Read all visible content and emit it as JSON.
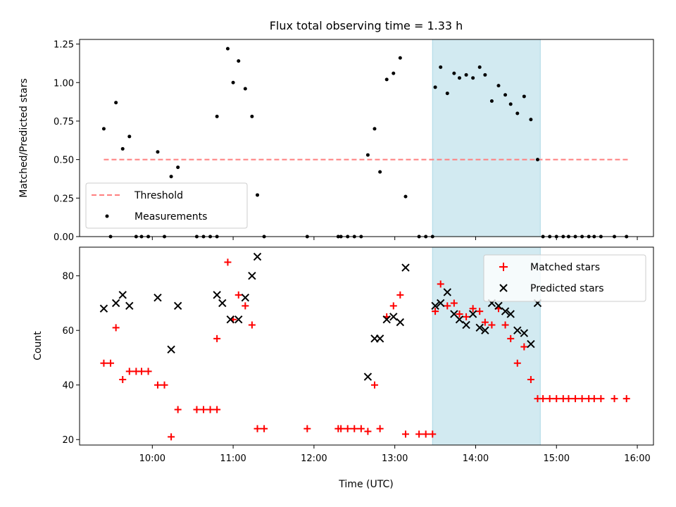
{
  "colors": {
    "highlight": "#add8e6",
    "threshold": "#ff7f7f",
    "measurement": "#000000",
    "matched": "#ff0000",
    "predicted": "#000000"
  },
  "chart_data": [
    {
      "type": "scatter",
      "title": "Flux total observing time = 1.33 h",
      "xlabel": "",
      "ylabel": "Matched/Predicted stars",
      "xlim": [
        "09:06",
        "16:12"
      ],
      "ylim": [
        0,
        1.28
      ],
      "yticks": [
        "0.00",
        "0.25",
        "0.50",
        "0.75",
        "1.00",
        "1.25"
      ],
      "highlight_span": [
        "13:28",
        "14:48"
      ],
      "legend_position": "lower-left",
      "series": [
        {
          "name": "Threshold",
          "style": "dashed-line",
          "x": [
            "09:24",
            "15:54"
          ],
          "y": [
            0.5,
            0.5
          ]
        },
        {
          "name": "Measurements",
          "style": "dots",
          "points": [
            [
              "09:24",
              0.7
            ],
            [
              "09:29",
              0.0
            ],
            [
              "09:33",
              0.87
            ],
            [
              "09:38",
              0.57
            ],
            [
              "09:43",
              0.65
            ],
            [
              "09:48",
              0.0
            ],
            [
              "09:52",
              0.0
            ],
            [
              "09:57",
              0.0
            ],
            [
              "10:04",
              0.55
            ],
            [
              "10:09",
              0.0
            ],
            [
              "10:14",
              0.39
            ],
            [
              "10:19",
              0.45
            ],
            [
              "10:33",
              0.0
            ],
            [
              "10:38",
              0.0
            ],
            [
              "10:43",
              0.0
            ],
            [
              "10:48",
              0.0
            ],
            [
              "10:48",
              0.78
            ],
            [
              "10:56",
              1.22
            ],
            [
              "11:00",
              1.0
            ],
            [
              "11:04",
              1.14
            ],
            [
              "11:09",
              0.96
            ],
            [
              "11:14",
              0.78
            ],
            [
              "11:18",
              0.27
            ],
            [
              "11:23",
              0.0
            ],
            [
              "11:55",
              0.0
            ],
            [
              "12:18",
              0.0
            ],
            [
              "12:20",
              0.0
            ],
            [
              "12:25",
              0.0
            ],
            [
              "12:30",
              0.0
            ],
            [
              "12:35",
              0.0
            ],
            [
              "12:40",
              0.53
            ],
            [
              "12:45",
              0.7
            ],
            [
              "12:49",
              0.42
            ],
            [
              "12:54",
              1.02
            ],
            [
              "12:59",
              1.06
            ],
            [
              "13:04",
              1.16
            ],
            [
              "13:08",
              0.26
            ],
            [
              "13:18",
              0.0
            ],
            [
              "13:23",
              0.0
            ],
            [
              "13:28",
              0.0
            ],
            [
              "13:30",
              0.97
            ],
            [
              "13:34",
              1.1
            ],
            [
              "13:39",
              0.93
            ],
            [
              "13:44",
              1.06
            ],
            [
              "13:48",
              1.03
            ],
            [
              "13:53",
              1.05
            ],
            [
              "13:58",
              1.03
            ],
            [
              "14:03",
              1.1
            ],
            [
              "14:07",
              1.05
            ],
            [
              "14:12",
              0.88
            ],
            [
              "14:17",
              0.98
            ],
            [
              "14:22",
              0.92
            ],
            [
              "14:26",
              0.86
            ],
            [
              "14:31",
              0.8
            ],
            [
              "14:36",
              0.91
            ],
            [
              "14:41",
              0.76
            ],
            [
              "14:46",
              0.5
            ],
            [
              "14:50",
              0.0
            ],
            [
              "14:55",
              0.0
            ],
            [
              "15:00",
              0.0
            ],
            [
              "15:05",
              0.0
            ],
            [
              "15:09",
              0.0
            ],
            [
              "15:14",
              0.0
            ],
            [
              "15:19",
              0.0
            ],
            [
              "15:24",
              0.0
            ],
            [
              "15:28",
              0.0
            ],
            [
              "15:33",
              0.0
            ],
            [
              "15:43",
              0.0
            ],
            [
              "15:52",
              0.0
            ]
          ]
        }
      ]
    },
    {
      "type": "scatter",
      "title": "",
      "xlabel": "Time (UTC)",
      "ylabel": "Count",
      "xlim": [
        "09:06",
        "16:12"
      ],
      "ylim": [
        18,
        90.5
      ],
      "xticks": [
        "10:00",
        "11:00",
        "12:00",
        "13:00",
        "14:00",
        "15:00",
        "16:00"
      ],
      "yticks": [
        "20",
        "40",
        "60",
        "80"
      ],
      "highlight_span": [
        "13:28",
        "14:48"
      ],
      "legend_position": "upper-right",
      "series": [
        {
          "name": "Matched stars",
          "style": "plus",
          "points": [
            [
              "09:24",
              48
            ],
            [
              "09:29",
              48
            ],
            [
              "09:33",
              61
            ],
            [
              "09:38",
              42
            ],
            [
              "09:43",
              45
            ],
            [
              "09:48",
              45
            ],
            [
              "09:52",
              45
            ],
            [
              "09:57",
              45
            ],
            [
              "10:04",
              40
            ],
            [
              "10:09",
              40
            ],
            [
              "10:14",
              21
            ],
            [
              "10:19",
              31
            ],
            [
              "10:33",
              31
            ],
            [
              "10:38",
              31
            ],
            [
              "10:43",
              31
            ],
            [
              "10:48",
              31
            ],
            [
              "10:48",
              57
            ],
            [
              "10:56",
              85
            ],
            [
              "11:00",
              64
            ],
            [
              "11:04",
              73
            ],
            [
              "11:09",
              69
            ],
            [
              "11:14",
              62
            ],
            [
              "11:18",
              24
            ],
            [
              "11:23",
              24
            ],
            [
              "11:55",
              24
            ],
            [
              "12:18",
              24
            ],
            [
              "12:20",
              24
            ],
            [
              "12:25",
              24
            ],
            [
              "12:30",
              24
            ],
            [
              "12:35",
              24
            ],
            [
              "12:40",
              23
            ],
            [
              "12:45",
              40
            ],
            [
              "12:49",
              24
            ],
            [
              "12:54",
              65
            ],
            [
              "12:59",
              69
            ],
            [
              "13:04",
              73
            ],
            [
              "13:08",
              22
            ],
            [
              "13:18",
              22
            ],
            [
              "13:23",
              22
            ],
            [
              "13:28",
              22
            ],
            [
              "13:30",
              67
            ],
            [
              "13:34",
              77
            ],
            [
              "13:39",
              69
            ],
            [
              "13:44",
              70
            ],
            [
              "13:48",
              66
            ],
            [
              "13:53",
              65
            ],
            [
              "13:58",
              68
            ],
            [
              "14:03",
              67
            ],
            [
              "14:07",
              63
            ],
            [
              "14:12",
              62
            ],
            [
              "14:17",
              68
            ],
            [
              "14:22",
              62
            ],
            [
              "14:26",
              57
            ],
            [
              "14:31",
              48
            ],
            [
              "14:36",
              54
            ],
            [
              "14:41",
              42
            ],
            [
              "14:46",
              35
            ],
            [
              "14:50",
              35
            ],
            [
              "14:55",
              35
            ],
            [
              "15:00",
              35
            ],
            [
              "15:05",
              35
            ],
            [
              "15:09",
              35
            ],
            [
              "15:14",
              35
            ],
            [
              "15:19",
              35
            ],
            [
              "15:24",
              35
            ],
            [
              "15:28",
              35
            ],
            [
              "15:33",
              35
            ],
            [
              "15:43",
              35
            ],
            [
              "15:52",
              35
            ]
          ]
        },
        {
          "name": "Predicted stars",
          "style": "cross",
          "points": [
            [
              "09:24",
              68
            ],
            [
              "09:33",
              70
            ],
            [
              "09:38",
              73
            ],
            [
              "09:43",
              69
            ],
            [
              "10:04",
              72
            ],
            [
              "10:14",
              53
            ],
            [
              "10:19",
              69
            ],
            [
              "10:48",
              73
            ],
            [
              "10:52",
              70
            ],
            [
              "10:58",
              64
            ],
            [
              "11:04",
              64
            ],
            [
              "11:09",
              72
            ],
            [
              "11:14",
              80
            ],
            [
              "11:18",
              87
            ],
            [
              "12:40",
              43
            ],
            [
              "12:45",
              57
            ],
            [
              "12:49",
              57
            ],
            [
              "12:54",
              64
            ],
            [
              "12:59",
              65
            ],
            [
              "13:04",
              63
            ],
            [
              "13:08",
              83
            ],
            [
              "13:30",
              69
            ],
            [
              "13:34",
              70
            ],
            [
              "13:39",
              74
            ],
            [
              "13:44",
              66
            ],
            [
              "13:48",
              64
            ],
            [
              "13:53",
              62
            ],
            [
              "13:58",
              66
            ],
            [
              "14:03",
              61
            ],
            [
              "14:07",
              60
            ],
            [
              "14:12",
              70
            ],
            [
              "14:17",
              69
            ],
            [
              "14:22",
              67
            ],
            [
              "14:26",
              66
            ],
            [
              "14:31",
              60
            ],
            [
              "14:36",
              59
            ],
            [
              "14:41",
              55
            ],
            [
              "14:46",
              70
            ]
          ]
        }
      ]
    }
  ]
}
